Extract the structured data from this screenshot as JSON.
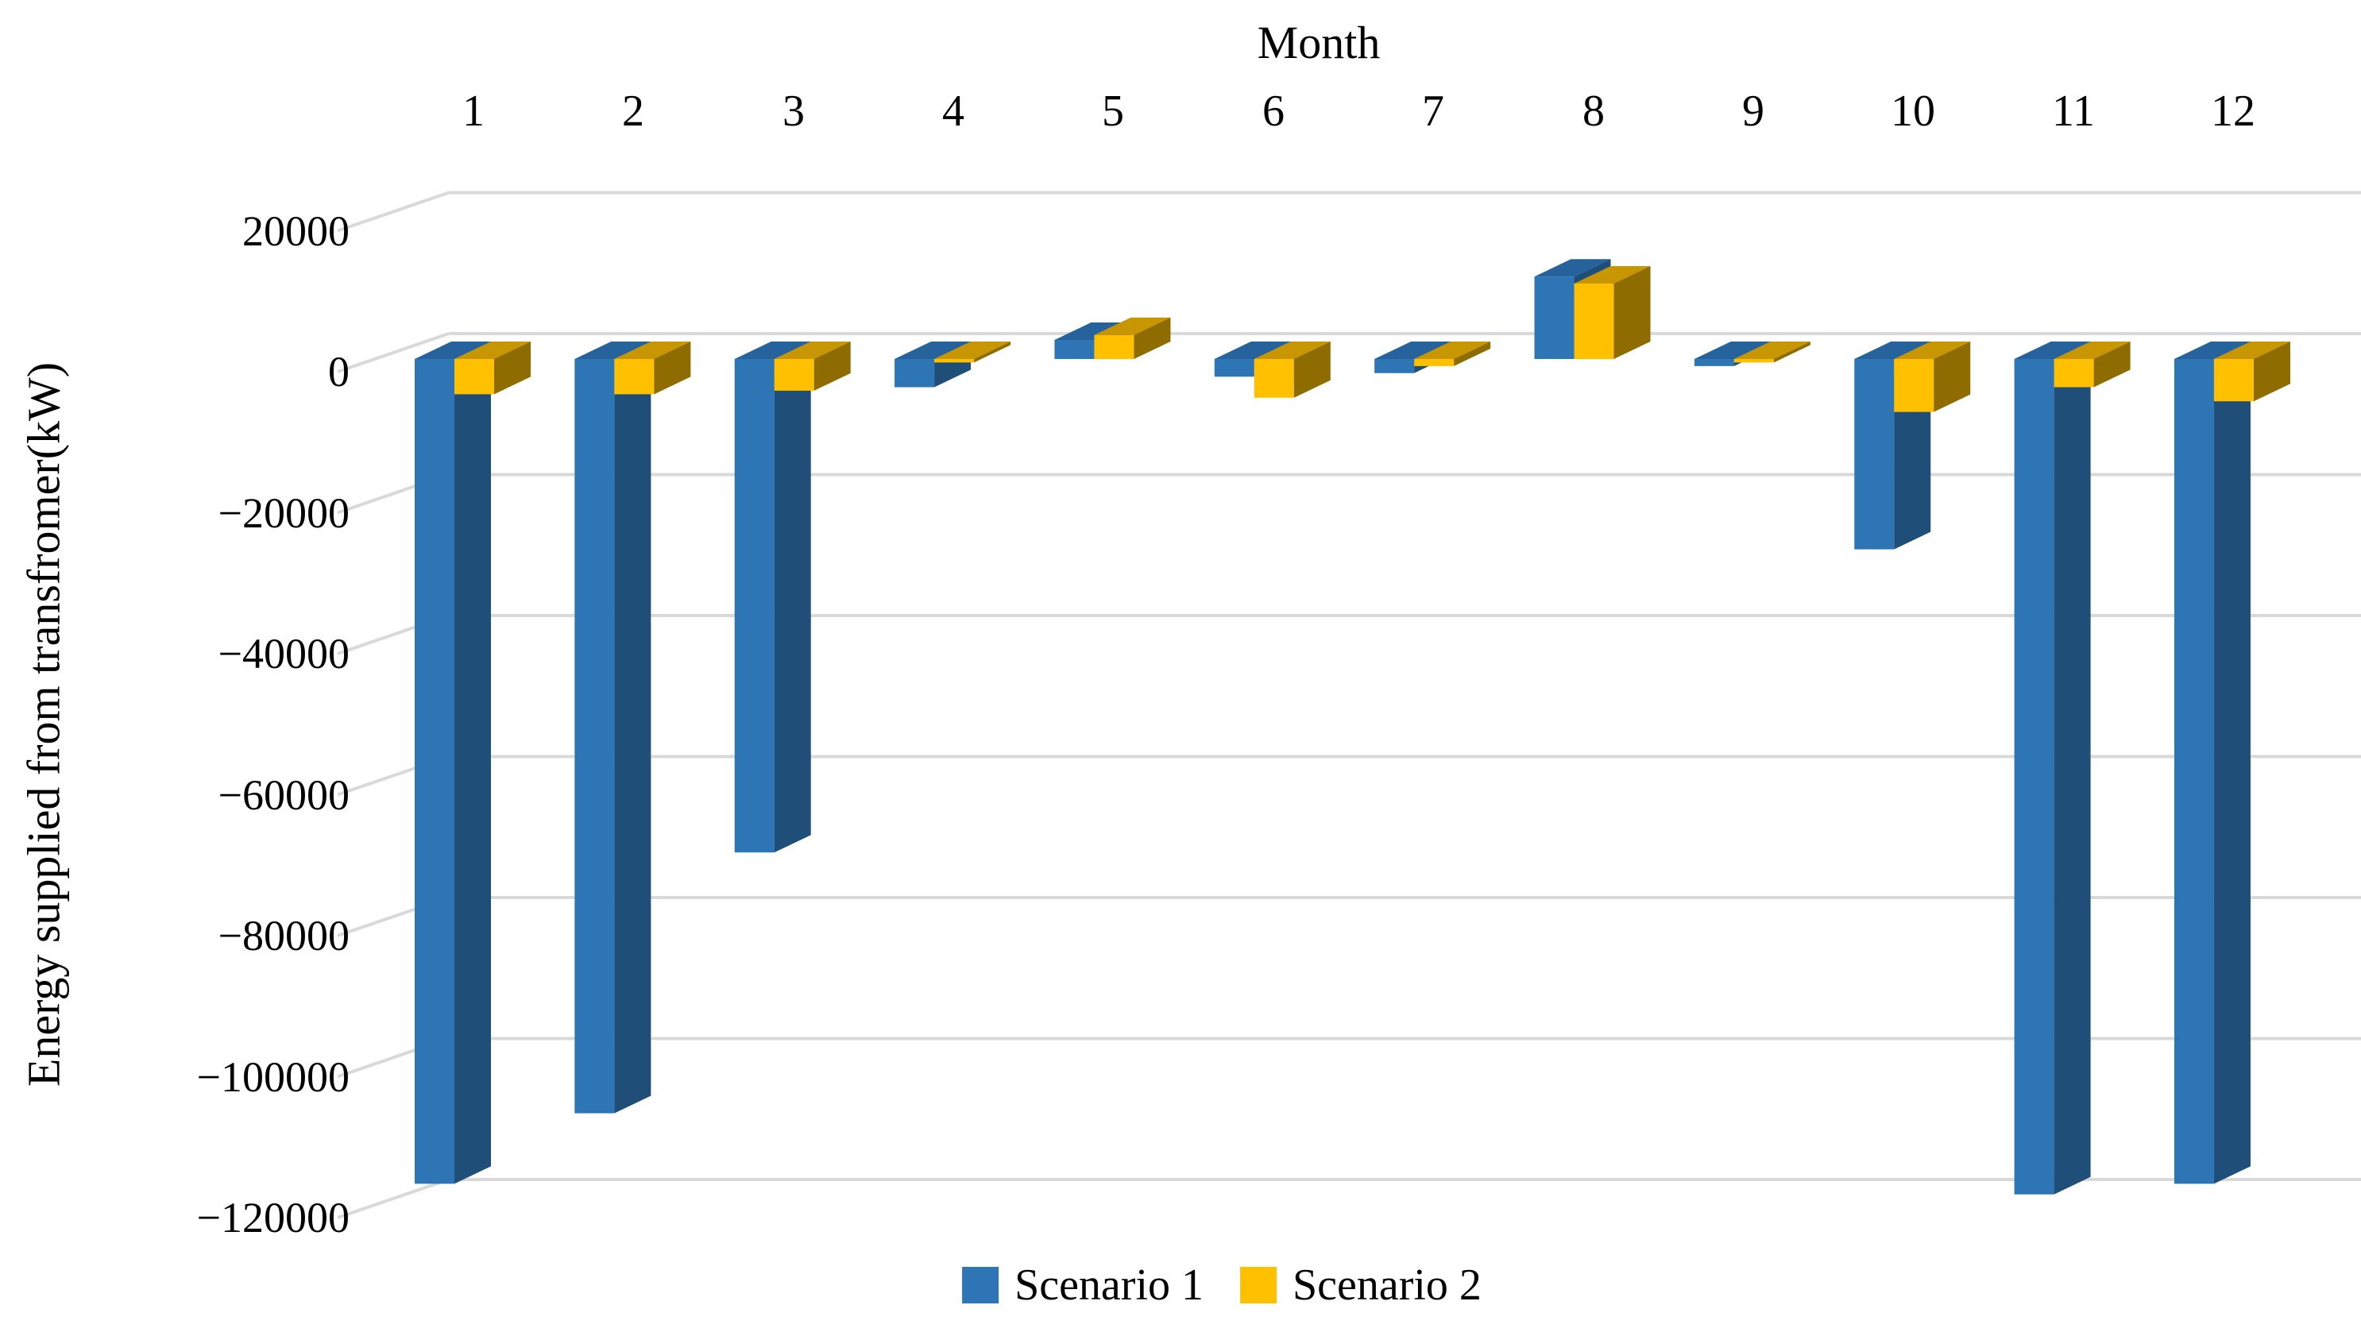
{
  "chart_data": {
    "type": "bar",
    "variant": "3d-clustered-column",
    "x_axis": {
      "label": "Month",
      "position": "top",
      "categories": [
        "1",
        "2",
        "3",
        "4",
        "5",
        "6",
        "7",
        "8",
        "9",
        "10",
        "11",
        "12"
      ]
    },
    "y_axis": {
      "label": "Energy supplied from transfromer(kW)",
      "ylim": [
        -120000,
        20000
      ],
      "tick_step": 20000,
      "ticks": [
        20000,
        0,
        -20000,
        -40000,
        -60000,
        -80000,
        -100000,
        -120000
      ],
      "tick_labels": [
        "20000",
        "0",
        "−20000",
        "−40000",
        "−60000",
        "−80000",
        "−100000",
        "−120000"
      ],
      "gridlines": true
    },
    "series": [
      {
        "name": "Scenario 1",
        "color": "#2E75B6",
        "color_top": "#26639C",
        "color_side": "#1F4E79",
        "values": [
          -117000,
          -107000,
          -70000,
          -4000,
          2700,
          -2500,
          -2000,
          11700,
          -1000,
          -27000,
          -118500,
          -117000
        ]
      },
      {
        "name": "Scenario 2",
        "color": "#FFC000",
        "color_top": "#C79600",
        "color_side": "#8F6C00",
        "values": [
          -5000,
          -5000,
          -4500,
          -500,
          3400,
          -5500,
          -1000,
          10700,
          -500,
          -7500,
          -4000,
          -6000
        ]
      }
    ],
    "legend": {
      "position": "bottom",
      "entries": [
        "Scenario 1",
        "Scenario 2"
      ]
    },
    "gridline_color": "#D9D9D9",
    "background_color": "#FFFFFF",
    "text_color": "#000000"
  }
}
